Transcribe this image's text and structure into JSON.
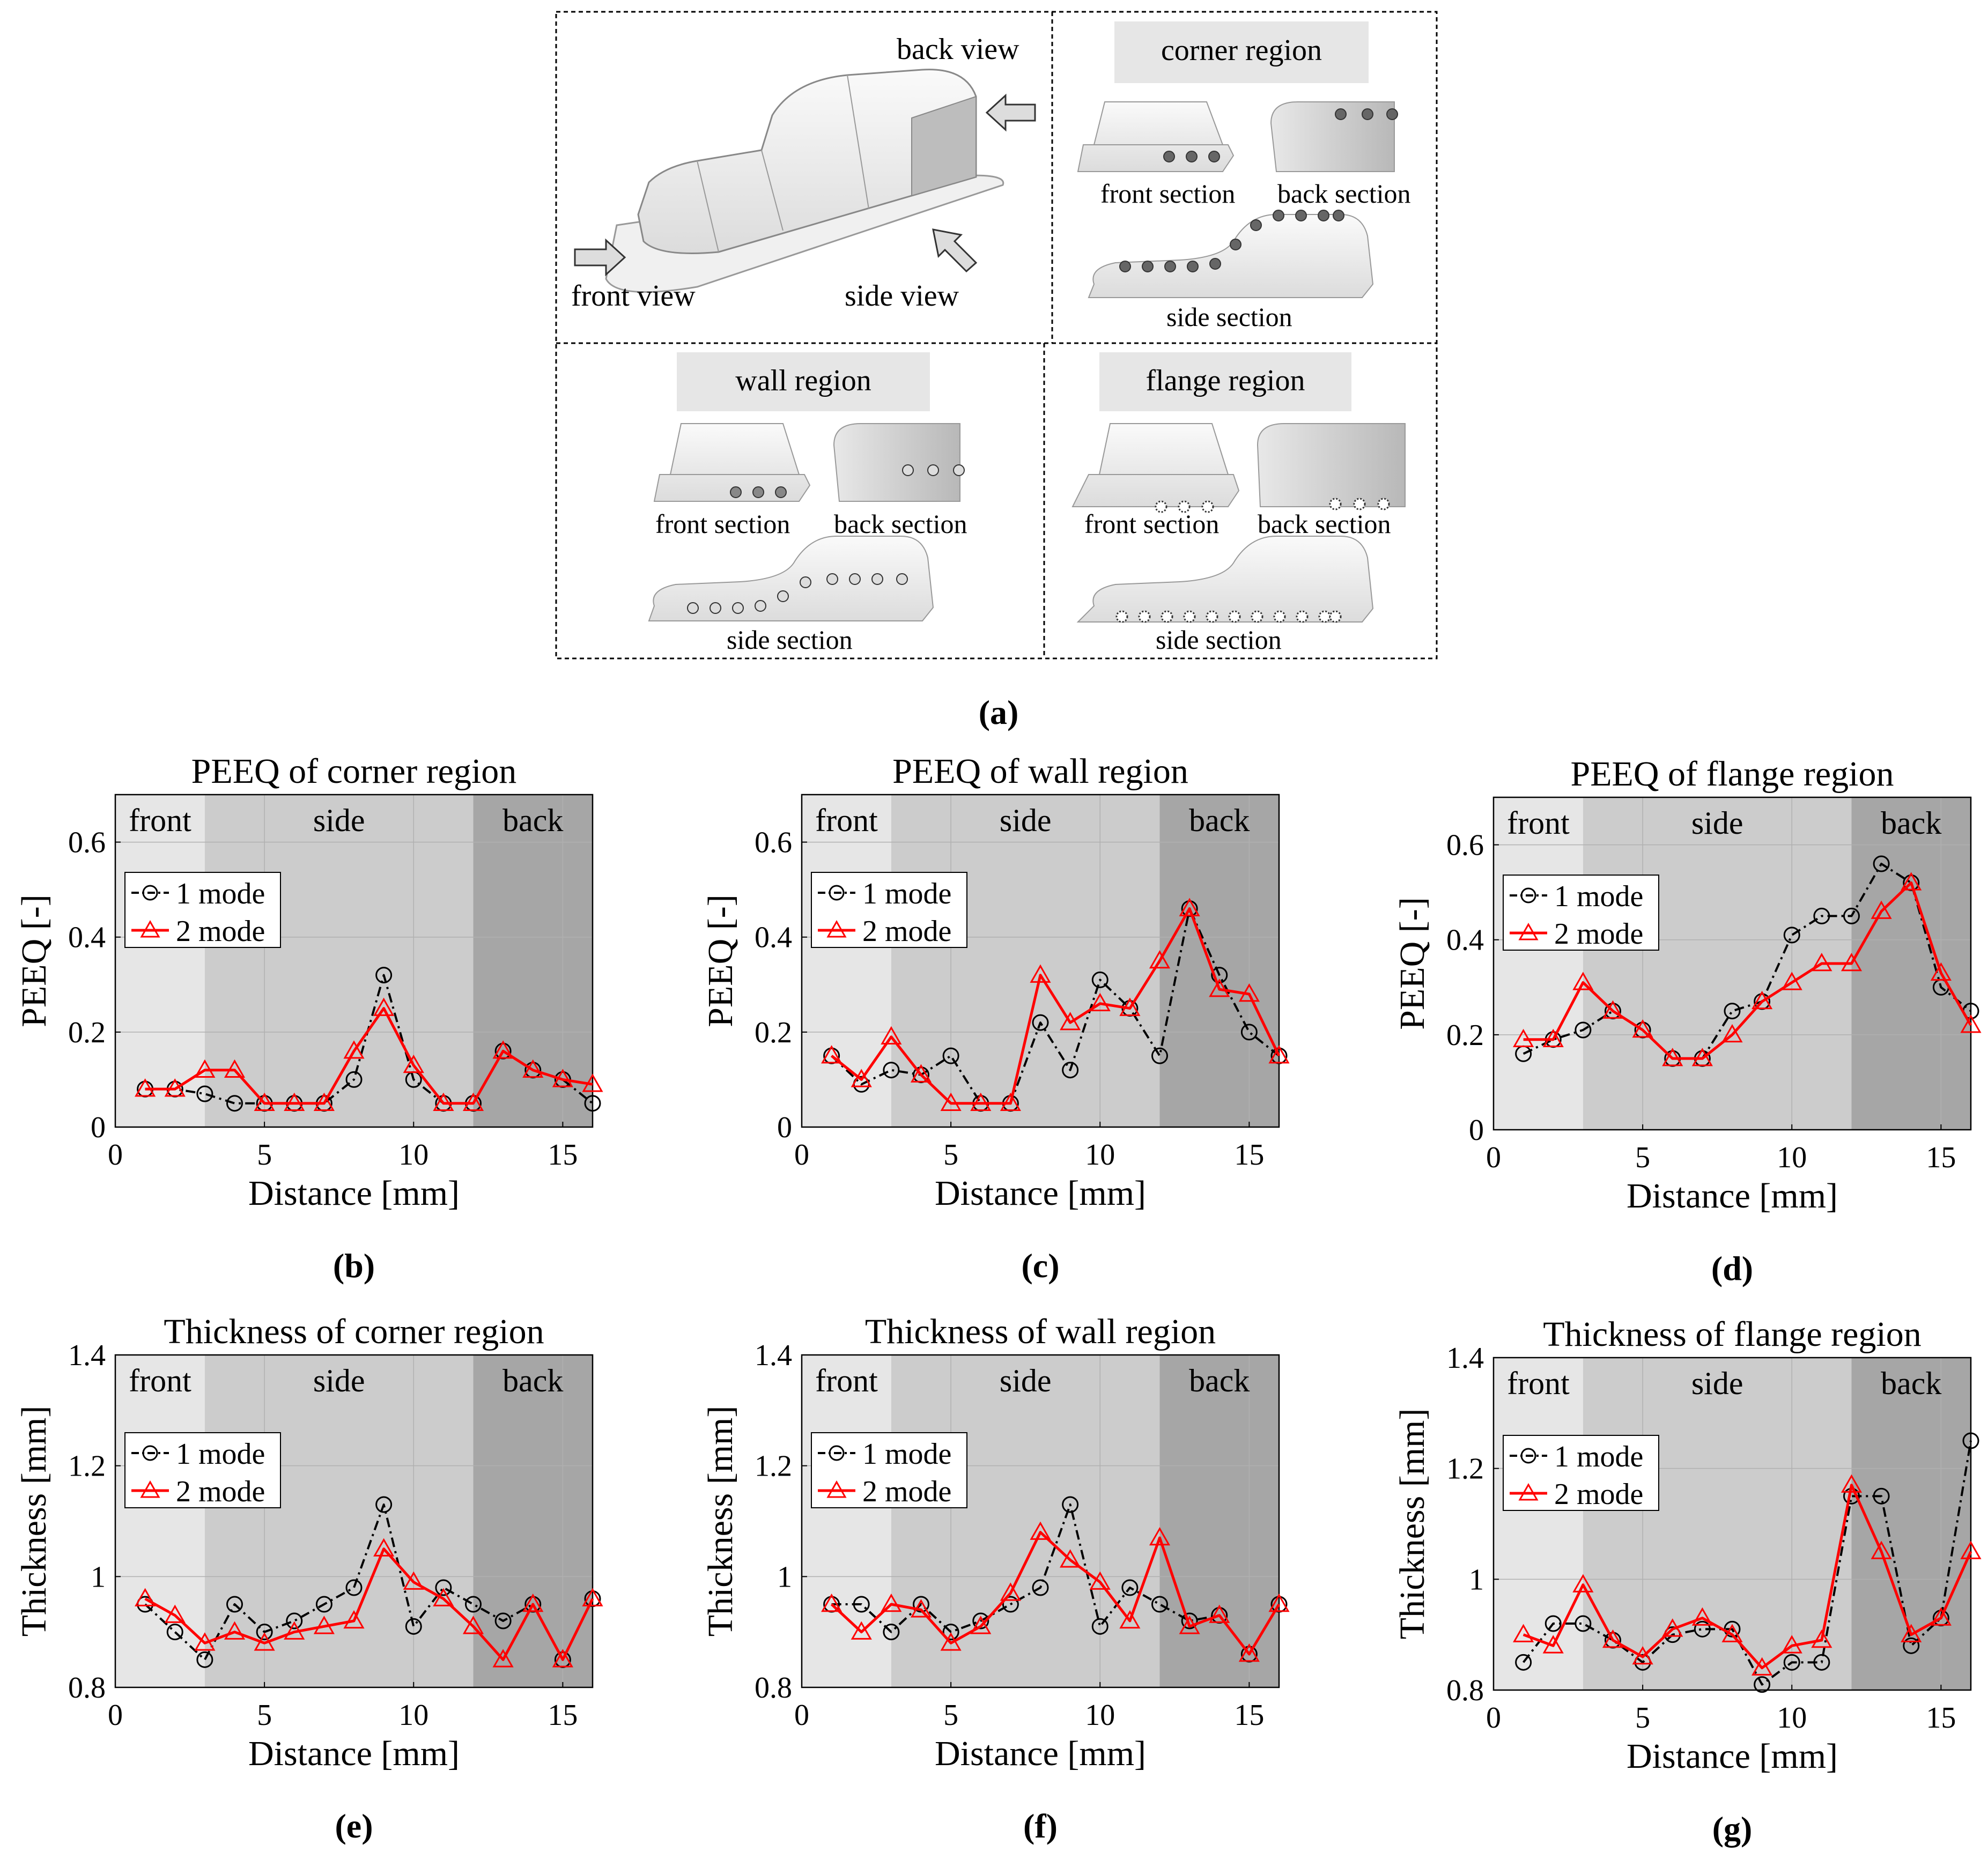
{
  "figure_a": {
    "panel_label": "(a)",
    "overview": {
      "back_view": "back view",
      "front_view": "front view",
      "side_view": "side view"
    },
    "corner": {
      "title": "corner region",
      "front_section": "front section",
      "back_section": "back section",
      "side_section": "side section"
    },
    "wall": {
      "title": "wall region",
      "front_section": "front section",
      "back_section": "back section",
      "side_section": "side section"
    },
    "flange": {
      "title": "flange region",
      "front_section": "front section",
      "back_section": "back section",
      "side_section": "side section"
    }
  },
  "colors": {
    "series1": "#000000",
    "series2": "#ff0000",
    "region_front": "#e6e6e6",
    "region_side": "#cccccc",
    "region_back": "#a6a6a6",
    "frame": "#000000",
    "banner": "#e6e6e6",
    "part_fill": "#f2f2f2",
    "part_shade": "#d4d4d4",
    "point": "#666666"
  },
  "chart_data": [
    {
      "id": "b",
      "panel_label": "(b)",
      "type": "line",
      "title": "PEEQ of corner region",
      "xlabel": "Distance [mm]",
      "ylabel": "PEEQ [-]",
      "xlim": [
        0,
        16
      ],
      "ylim": [
        0,
        0.7
      ],
      "xticks": [
        0,
        5,
        10,
        15
      ],
      "yticks": [
        0,
        0.2,
        0.4,
        0.6
      ],
      "ytick_labels": [
        "0",
        "0.2",
        "0.4",
        "0.6"
      ],
      "regions": [
        {
          "label": "front",
          "from": 0,
          "to": 3
        },
        {
          "label": "side",
          "from": 3,
          "to": 12
        },
        {
          "label": "back",
          "from": 12,
          "to": 16
        }
      ],
      "legend_position": "upper-left",
      "grid": true,
      "x": [
        1,
        2,
        3,
        4,
        5,
        6,
        7,
        8,
        9,
        10,
        11,
        12,
        13,
        14,
        15,
        16
      ],
      "series": [
        {
          "name": "1 mode",
          "marker": "circle",
          "line": "dash-dot",
          "values": [
            0.08,
            0.08,
            0.07,
            0.05,
            0.05,
            0.05,
            0.05,
            0.1,
            0.32,
            0.1,
            0.05,
            0.05,
            0.16,
            0.12,
            0.1,
            0.05
          ]
        },
        {
          "name": "2 mode",
          "marker": "triangle",
          "line": "solid",
          "values": [
            0.08,
            0.08,
            0.12,
            0.12,
            0.05,
            0.05,
            0.05,
            0.16,
            0.25,
            0.13,
            0.05,
            0.05,
            0.16,
            0.12,
            0.1,
            0.09
          ]
        }
      ]
    },
    {
      "id": "c",
      "panel_label": "(c)",
      "type": "line",
      "title": "PEEQ of wall region",
      "xlabel": "Distance [mm]",
      "ylabel": "PEEQ [-]",
      "xlim": [
        0,
        16
      ],
      "ylim": [
        0,
        0.7
      ],
      "xticks": [
        0,
        5,
        10,
        15
      ],
      "yticks": [
        0,
        0.2,
        0.4,
        0.6
      ],
      "ytick_labels": [
        "0",
        "0.2",
        "0.4",
        "0.6"
      ],
      "regions": [
        {
          "label": "front",
          "from": 0,
          "to": 3
        },
        {
          "label": "side",
          "from": 3,
          "to": 12
        },
        {
          "label": "back",
          "from": 12,
          "to": 16
        }
      ],
      "legend_position": "upper-left",
      "grid": true,
      "x": [
        1,
        2,
        3,
        4,
        5,
        6,
        7,
        8,
        9,
        10,
        11,
        12,
        13,
        14,
        15,
        16
      ],
      "series": [
        {
          "name": "1 mode",
          "marker": "circle",
          "line": "dash-dot",
          "values": [
            0.15,
            0.09,
            0.12,
            0.11,
            0.15,
            0.05,
            0.05,
            0.22,
            0.12,
            0.31,
            0.25,
            0.15,
            0.46,
            0.32,
            0.2,
            0.15
          ]
        },
        {
          "name": "2 mode",
          "marker": "triangle",
          "line": "solid",
          "values": [
            0.15,
            0.1,
            0.19,
            0.11,
            0.05,
            0.05,
            0.05,
            0.32,
            0.22,
            0.26,
            0.25,
            0.35,
            0.46,
            0.29,
            0.28,
            0.15
          ]
        }
      ]
    },
    {
      "id": "d",
      "panel_label": "(d)",
      "type": "line",
      "title": "PEEQ of flange region",
      "xlabel": "Distance [mm]",
      "ylabel": "PEEQ [-]",
      "xlim": [
        0,
        16
      ],
      "ylim": [
        0,
        0.7
      ],
      "xticks": [
        0,
        5,
        10,
        15
      ],
      "yticks": [
        0,
        0.2,
        0.4,
        0.6
      ],
      "ytick_labels": [
        "0",
        "0.2",
        "0.4",
        "0.6"
      ],
      "regions": [
        {
          "label": "front",
          "from": 0,
          "to": 3
        },
        {
          "label": "side",
          "from": 3,
          "to": 12
        },
        {
          "label": "back",
          "from": 12,
          "to": 16
        }
      ],
      "legend_position": "upper-left",
      "grid": true,
      "x": [
        1,
        2,
        3,
        4,
        5,
        6,
        7,
        8,
        9,
        10,
        11,
        12,
        13,
        14,
        15,
        16
      ],
      "series": [
        {
          "name": "1 mode",
          "marker": "circle",
          "line": "dash-dot",
          "values": [
            0.16,
            0.19,
            0.21,
            0.25,
            0.21,
            0.15,
            0.15,
            0.25,
            0.27,
            0.41,
            0.45,
            0.45,
            0.56,
            0.52,
            0.3,
            0.25
          ]
        },
        {
          "name": "2 mode",
          "marker": "triangle",
          "line": "solid",
          "values": [
            0.19,
            0.19,
            0.31,
            0.25,
            0.21,
            0.15,
            0.15,
            0.2,
            0.27,
            0.31,
            0.35,
            0.35,
            0.46,
            0.52,
            0.33,
            0.22
          ]
        }
      ]
    },
    {
      "id": "e",
      "panel_label": "(e)",
      "type": "line",
      "title": "Thickness of corner region",
      "xlabel": "Distance [mm]",
      "ylabel": "Thickness [mm]",
      "xlim": [
        0,
        16
      ],
      "ylim": [
        0.8,
        1.4
      ],
      "xticks": [
        0,
        5,
        10,
        15
      ],
      "yticks": [
        0.8,
        1.0,
        1.2,
        1.4
      ],
      "ytick_labels": [
        "0.8",
        "1",
        "1.2",
        "1.4"
      ],
      "regions": [
        {
          "label": "front",
          "from": 0,
          "to": 3
        },
        {
          "label": "side",
          "from": 3,
          "to": 12
        },
        {
          "label": "back",
          "from": 12,
          "to": 16
        }
      ],
      "legend_position": "upper-left",
      "grid": true,
      "x": [
        1,
        2,
        3,
        4,
        5,
        6,
        7,
        8,
        9,
        10,
        11,
        12,
        13,
        14,
        15,
        16
      ],
      "series": [
        {
          "name": "1 mode",
          "marker": "circle",
          "line": "dash-dot",
          "values": [
            0.95,
            0.9,
            0.85,
            0.95,
            0.9,
            0.92,
            0.95,
            0.98,
            1.13,
            0.91,
            0.98,
            0.95,
            0.92,
            0.95,
            0.85,
            0.96
          ]
        },
        {
          "name": "2 mode",
          "marker": "triangle",
          "line": "solid",
          "values": [
            0.96,
            0.93,
            0.88,
            0.9,
            0.88,
            0.9,
            0.91,
            0.92,
            1.05,
            0.99,
            0.96,
            0.91,
            0.85,
            0.95,
            0.85,
            0.96
          ]
        }
      ]
    },
    {
      "id": "f",
      "panel_label": "(f)",
      "type": "line",
      "title": "Thickness of wall region",
      "xlabel": "Distance [mm]",
      "ylabel": "Thickness [mm]",
      "xlim": [
        0,
        16
      ],
      "ylim": [
        0.8,
        1.4
      ],
      "xticks": [
        0,
        5,
        10,
        15
      ],
      "yticks": [
        0.8,
        1.0,
        1.2,
        1.4
      ],
      "ytick_labels": [
        "0.8",
        "1",
        "1.2",
        "1.4"
      ],
      "regions": [
        {
          "label": "front",
          "from": 0,
          "to": 3
        },
        {
          "label": "side",
          "from": 3,
          "to": 12
        },
        {
          "label": "back",
          "from": 12,
          "to": 16
        }
      ],
      "legend_position": "upper-left",
      "grid": true,
      "x": [
        1,
        2,
        3,
        4,
        5,
        6,
        7,
        8,
        9,
        10,
        11,
        12,
        13,
        14,
        15,
        16
      ],
      "series": [
        {
          "name": "1 mode",
          "marker": "circle",
          "line": "dash-dot",
          "values": [
            0.95,
            0.95,
            0.9,
            0.95,
            0.9,
            0.92,
            0.95,
            0.98,
            1.13,
            0.91,
            0.98,
            0.95,
            0.92,
            0.93,
            0.86,
            0.95
          ]
        },
        {
          "name": "2 mode",
          "marker": "triangle",
          "line": "solid",
          "values": [
            0.95,
            0.9,
            0.95,
            0.94,
            0.88,
            0.91,
            0.97,
            1.08,
            1.03,
            0.99,
            0.92,
            1.07,
            0.91,
            0.93,
            0.86,
            0.95
          ]
        }
      ]
    },
    {
      "id": "g",
      "panel_label": "(g)",
      "type": "line",
      "title": "Thickness of flange region",
      "xlabel": "Distance [mm]",
      "ylabel": "Thickness [mm]",
      "xlim": [
        0,
        16
      ],
      "ylim": [
        0.8,
        1.4
      ],
      "xticks": [
        0,
        5,
        10,
        15
      ],
      "yticks": [
        0.8,
        1.0,
        1.2,
        1.4
      ],
      "ytick_labels": [
        "0.8",
        "1",
        "1.2",
        "1.4"
      ],
      "regions": [
        {
          "label": "front",
          "from": 0,
          "to": 3
        },
        {
          "label": "side",
          "from": 3,
          "to": 12
        },
        {
          "label": "back",
          "from": 12,
          "to": 16
        }
      ],
      "legend_position": "upper-left",
      "grid": true,
      "x": [
        1,
        2,
        3,
        4,
        5,
        6,
        7,
        8,
        9,
        10,
        11,
        12,
        13,
        14,
        15,
        16
      ],
      "series": [
        {
          "name": "1 mode",
          "marker": "circle",
          "line": "dash-dot",
          "values": [
            0.85,
            0.92,
            0.92,
            0.89,
            0.85,
            0.9,
            0.91,
            0.91,
            0.81,
            0.85,
            0.85,
            1.15,
            1.15,
            0.88,
            0.93,
            1.25
          ]
        },
        {
          "name": "2 mode",
          "marker": "triangle",
          "line": "solid",
          "values": [
            0.9,
            0.88,
            0.99,
            0.89,
            0.86,
            0.91,
            0.93,
            0.9,
            0.84,
            0.88,
            0.89,
            1.17,
            1.05,
            0.9,
            0.93,
            1.05
          ]
        }
      ]
    }
  ]
}
